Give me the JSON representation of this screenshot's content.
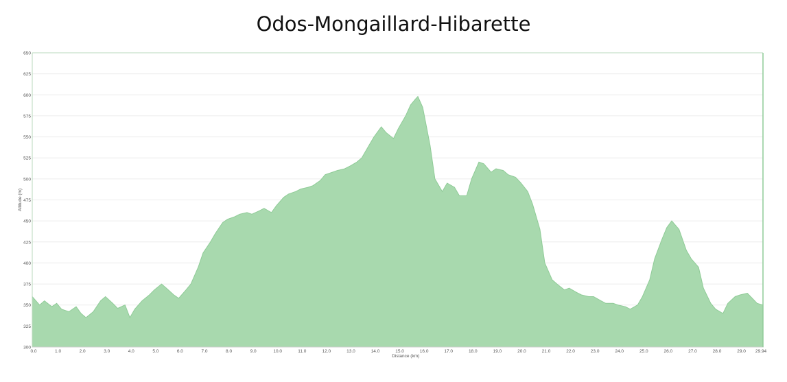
{
  "chart_data": {
    "type": "area",
    "title": "Odos-Mongaillard-Hibarette",
    "xlabel": "Distance  (km)",
    "ylabel": "Altitude (m)",
    "xlim": [
      0,
      29.94
    ],
    "ylim": [
      300,
      650
    ],
    "x_ticks": [
      "0.0",
      "1.0",
      "2.0",
      "3.0",
      "4.0",
      "5.0",
      "6.0",
      "7.0",
      "8.0",
      "9.0",
      "10.0",
      "11.0",
      "12.0",
      "13.0",
      "14.0",
      "15.0",
      "16.0",
      "17.0",
      "18.0",
      "19.0",
      "20.0",
      "21.0",
      "22.0",
      "23.0",
      "24.0",
      "25.0",
      "26.0",
      "27.0",
      "28.0",
      "29.0",
      "29.94"
    ],
    "y_ticks": [
      "300",
      "325",
      "350",
      "375",
      "400",
      "425",
      "450",
      "475",
      "500",
      "525",
      "550",
      "575",
      "600",
      "625",
      "650"
    ],
    "grid": "horizontal",
    "fill_color": "#a8d9ae",
    "stroke_color": "#8fcb97",
    "series": [
      {
        "x": [
          0,
          0.3,
          0.5,
          0.8,
          1.0,
          1.2,
          1.5,
          1.8,
          2.0,
          2.2,
          2.5,
          2.8,
          3.0,
          3.3,
          3.5,
          3.8,
          4.0,
          4.2,
          4.5,
          4.8,
          5.0,
          5.3,
          5.5,
          5.8,
          6.0,
          6.3,
          6.5,
          6.8,
          7.0,
          7.3,
          7.5,
          7.8,
          8.0,
          8.3,
          8.5,
          8.8,
          9.0,
          9.3,
          9.5,
          9.8,
          10.0,
          10.3,
          10.5,
          10.8,
          11.0,
          11.3,
          11.5,
          11.8,
          12.0,
          12.3,
          12.5,
          12.8,
          13.0,
          13.3,
          13.5,
          13.8,
          14.0,
          14.3,
          14.5,
          14.8,
          15.0,
          15.3,
          15.5,
          15.7,
          15.8,
          16.0,
          16.3,
          16.5,
          16.8,
          17.0,
          17.3,
          17.5,
          17.8,
          18.0,
          18.3,
          18.5,
          18.8,
          19.0,
          19.3,
          19.5,
          19.8,
          20.0,
          20.3,
          20.5,
          20.8,
          21.0,
          21.3,
          21.5,
          21.8,
          22.0,
          22.3,
          22.5,
          22.8,
          23.0,
          23.3,
          23.5,
          23.8,
          24.0,
          24.3,
          24.5,
          24.8,
          25.0,
          25.3,
          25.5,
          25.8,
          26.0,
          26.2,
          26.5,
          26.8,
          27.0,
          27.3,
          27.5,
          27.8,
          28.0,
          28.3,
          28.5,
          28.8,
          29.0,
          29.3,
          29.5,
          29.7,
          29.94
        ],
        "y": [
          360,
          350,
          355,
          348,
          352,
          345,
          342,
          348,
          340,
          335,
          342,
          355,
          360,
          352,
          346,
          350,
          335,
          345,
          355,
          362,
          368,
          375,
          370,
          362,
          358,
          368,
          375,
          395,
          412,
          425,
          435,
          448,
          452,
          455,
          458,
          460,
          458,
          462,
          465,
          460,
          468,
          478,
          482,
          485,
          488,
          490,
          492,
          498,
          505,
          508,
          510,
          512,
          515,
          520,
          525,
          540,
          550,
          562,
          555,
          548,
          560,
          575,
          588,
          595,
          598,
          585,
          540,
          500,
          485,
          495,
          490,
          480,
          480,
          500,
          520,
          518,
          508,
          512,
          510,
          505,
          502,
          496,
          485,
          470,
          440,
          400,
          380,
          375,
          368,
          370,
          365,
          362,
          360,
          360,
          355,
          352,
          352,
          350,
          348,
          345,
          350,
          360,
          380,
          405,
          428,
          442,
          450,
          440,
          415,
          405,
          395,
          370,
          352,
          345,
          340,
          352,
          360,
          362,
          364,
          358,
          352,
          350
        ]
      }
    ]
  }
}
